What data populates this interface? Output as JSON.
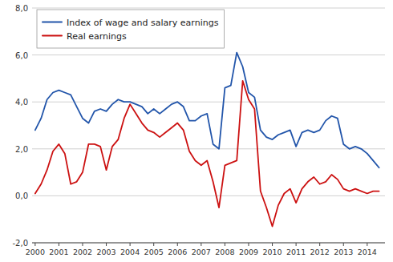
{
  "chart_data": {
    "type": "line",
    "x": [
      2000.0,
      2000.25,
      2000.5,
      2000.75,
      2001.0,
      2001.25,
      2001.5,
      2001.75,
      2002.0,
      2002.25,
      2002.5,
      2002.75,
      2003.0,
      2003.25,
      2003.5,
      2003.75,
      2004.0,
      2004.25,
      2004.5,
      2004.75,
      2005.0,
      2005.25,
      2005.5,
      2005.75,
      2006.0,
      2006.25,
      2006.5,
      2006.75,
      2007.0,
      2007.25,
      2007.5,
      2007.75,
      2008.0,
      2008.25,
      2008.5,
      2008.75,
      2009.0,
      2009.25,
      2009.5,
      2009.75,
      2010.0,
      2010.25,
      2010.5,
      2010.75,
      2011.0,
      2011.25,
      2011.5,
      2011.75,
      2012.0,
      2012.25,
      2012.5,
      2012.75,
      2013.0,
      2013.25,
      2013.5,
      2013.75,
      2014.0,
      2014.25,
      2014.5
    ],
    "series": [
      {
        "name": "Index of wage and salary earnings",
        "color": "#2255aa",
        "values": [
          2.8,
          3.3,
          4.1,
          4.4,
          4.5,
          4.4,
          4.3,
          3.8,
          3.3,
          3.1,
          3.6,
          3.7,
          3.6,
          3.9,
          4.1,
          4.0,
          4.0,
          3.9,
          3.8,
          3.5,
          3.7,
          3.5,
          3.7,
          3.9,
          4.0,
          3.8,
          3.2,
          3.2,
          3.4,
          3.5,
          2.2,
          2.0,
          4.6,
          4.7,
          6.1,
          5.5,
          4.4,
          4.2,
          2.8,
          2.5,
          2.4,
          2.6,
          2.7,
          2.8,
          2.1,
          2.7,
          2.8,
          2.7,
          2.8,
          3.2,
          3.4,
          3.3,
          2.2,
          2.0,
          2.1,
          2.0,
          1.8,
          1.5,
          1.2
        ]
      },
      {
        "name": "Real earnings",
        "color": "#cc1111",
        "values": [
          0.1,
          0.5,
          1.1,
          1.9,
          2.2,
          1.8,
          0.5,
          0.6,
          1.0,
          2.2,
          2.2,
          2.1,
          1.1,
          2.1,
          2.4,
          3.3,
          3.9,
          3.5,
          3.1,
          2.8,
          2.7,
          2.5,
          2.7,
          2.9,
          3.1,
          2.8,
          1.9,
          1.5,
          1.3,
          1.5,
          0.6,
          -0.5,
          1.3,
          1.4,
          1.5,
          4.9,
          4.1,
          3.7,
          0.2,
          -0.5,
          -1.3,
          -0.4,
          0.1,
          0.3,
          -0.3,
          0.3,
          0.6,
          0.8,
          0.5,
          0.6,
          0.9,
          0.7,
          0.3,
          0.2,
          0.3,
          0.2,
          0.1,
          0.2,
          0.2
        ]
      }
    ],
    "xlim": [
      1999.87,
      2014.75
    ],
    "xticks": [
      2000,
      2001,
      2002,
      2003,
      2004,
      2005,
      2006,
      2007,
      2008,
      2009,
      2010,
      2011,
      2012,
      2013,
      2014
    ],
    "ylim": [
      -2.0,
      8.0
    ],
    "yticks": [
      {
        "value": -2.0,
        "label": "-2,0"
      },
      {
        "value": 0.0,
        "label": "0,0"
      },
      {
        "value": 2.0,
        "label": "2,0"
      },
      {
        "value": 4.0,
        "label": "4,0"
      },
      {
        "value": 6.0,
        "label": "6,0"
      },
      {
        "value": 8.0,
        "label": "8,0"
      }
    ],
    "grid": true,
    "legend": "upper left"
  }
}
